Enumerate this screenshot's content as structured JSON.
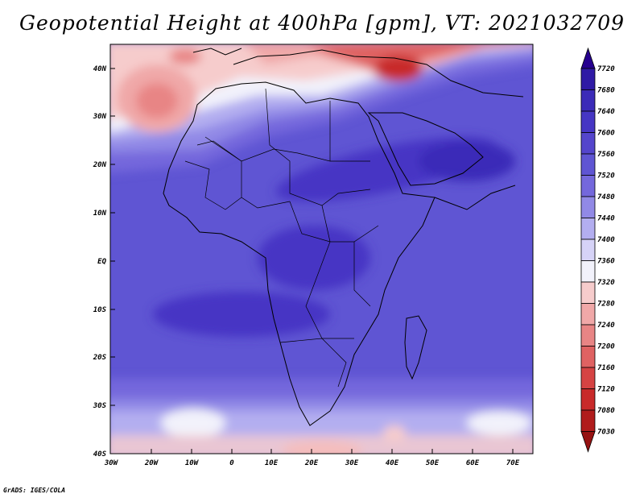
{
  "title": "Geopotential Height at 400hPa [gpm], VT: 2021032709",
  "credit": "GrADS: IGES/COLA",
  "lat_labels": [
    "40N",
    "30N",
    "20N",
    "10N",
    "EQ",
    "10S",
    "20S",
    "30S",
    "40S"
  ],
  "lon_labels": [
    "30W",
    "20W",
    "10W",
    "0",
    "10E",
    "20E",
    "30E",
    "40E",
    "50E",
    "60E",
    "70E"
  ],
  "colorbar": {
    "labels": [
      "7720",
      "7680",
      "7640",
      "7600",
      "7560",
      "7520",
      "7480",
      "7440",
      "7400",
      "7360",
      "7320",
      "7280",
      "7240",
      "7200",
      "7160",
      "7120",
      "7080",
      "7030"
    ],
    "colors": [
      "#26008f",
      "#2f1aa5",
      "#3b2bb8",
      "#4636c4",
      "#5445cc",
      "#5f55d3",
      "#7468dc",
      "#9189e6",
      "#b3aef0",
      "#d6d3f7",
      "#f2f2fb",
      "#f6cccc",
      "#f0a8a8",
      "#e88585",
      "#df6262",
      "#d54343",
      "#c82a2a",
      "#b01c1c",
      "#961212"
    ]
  }
}
